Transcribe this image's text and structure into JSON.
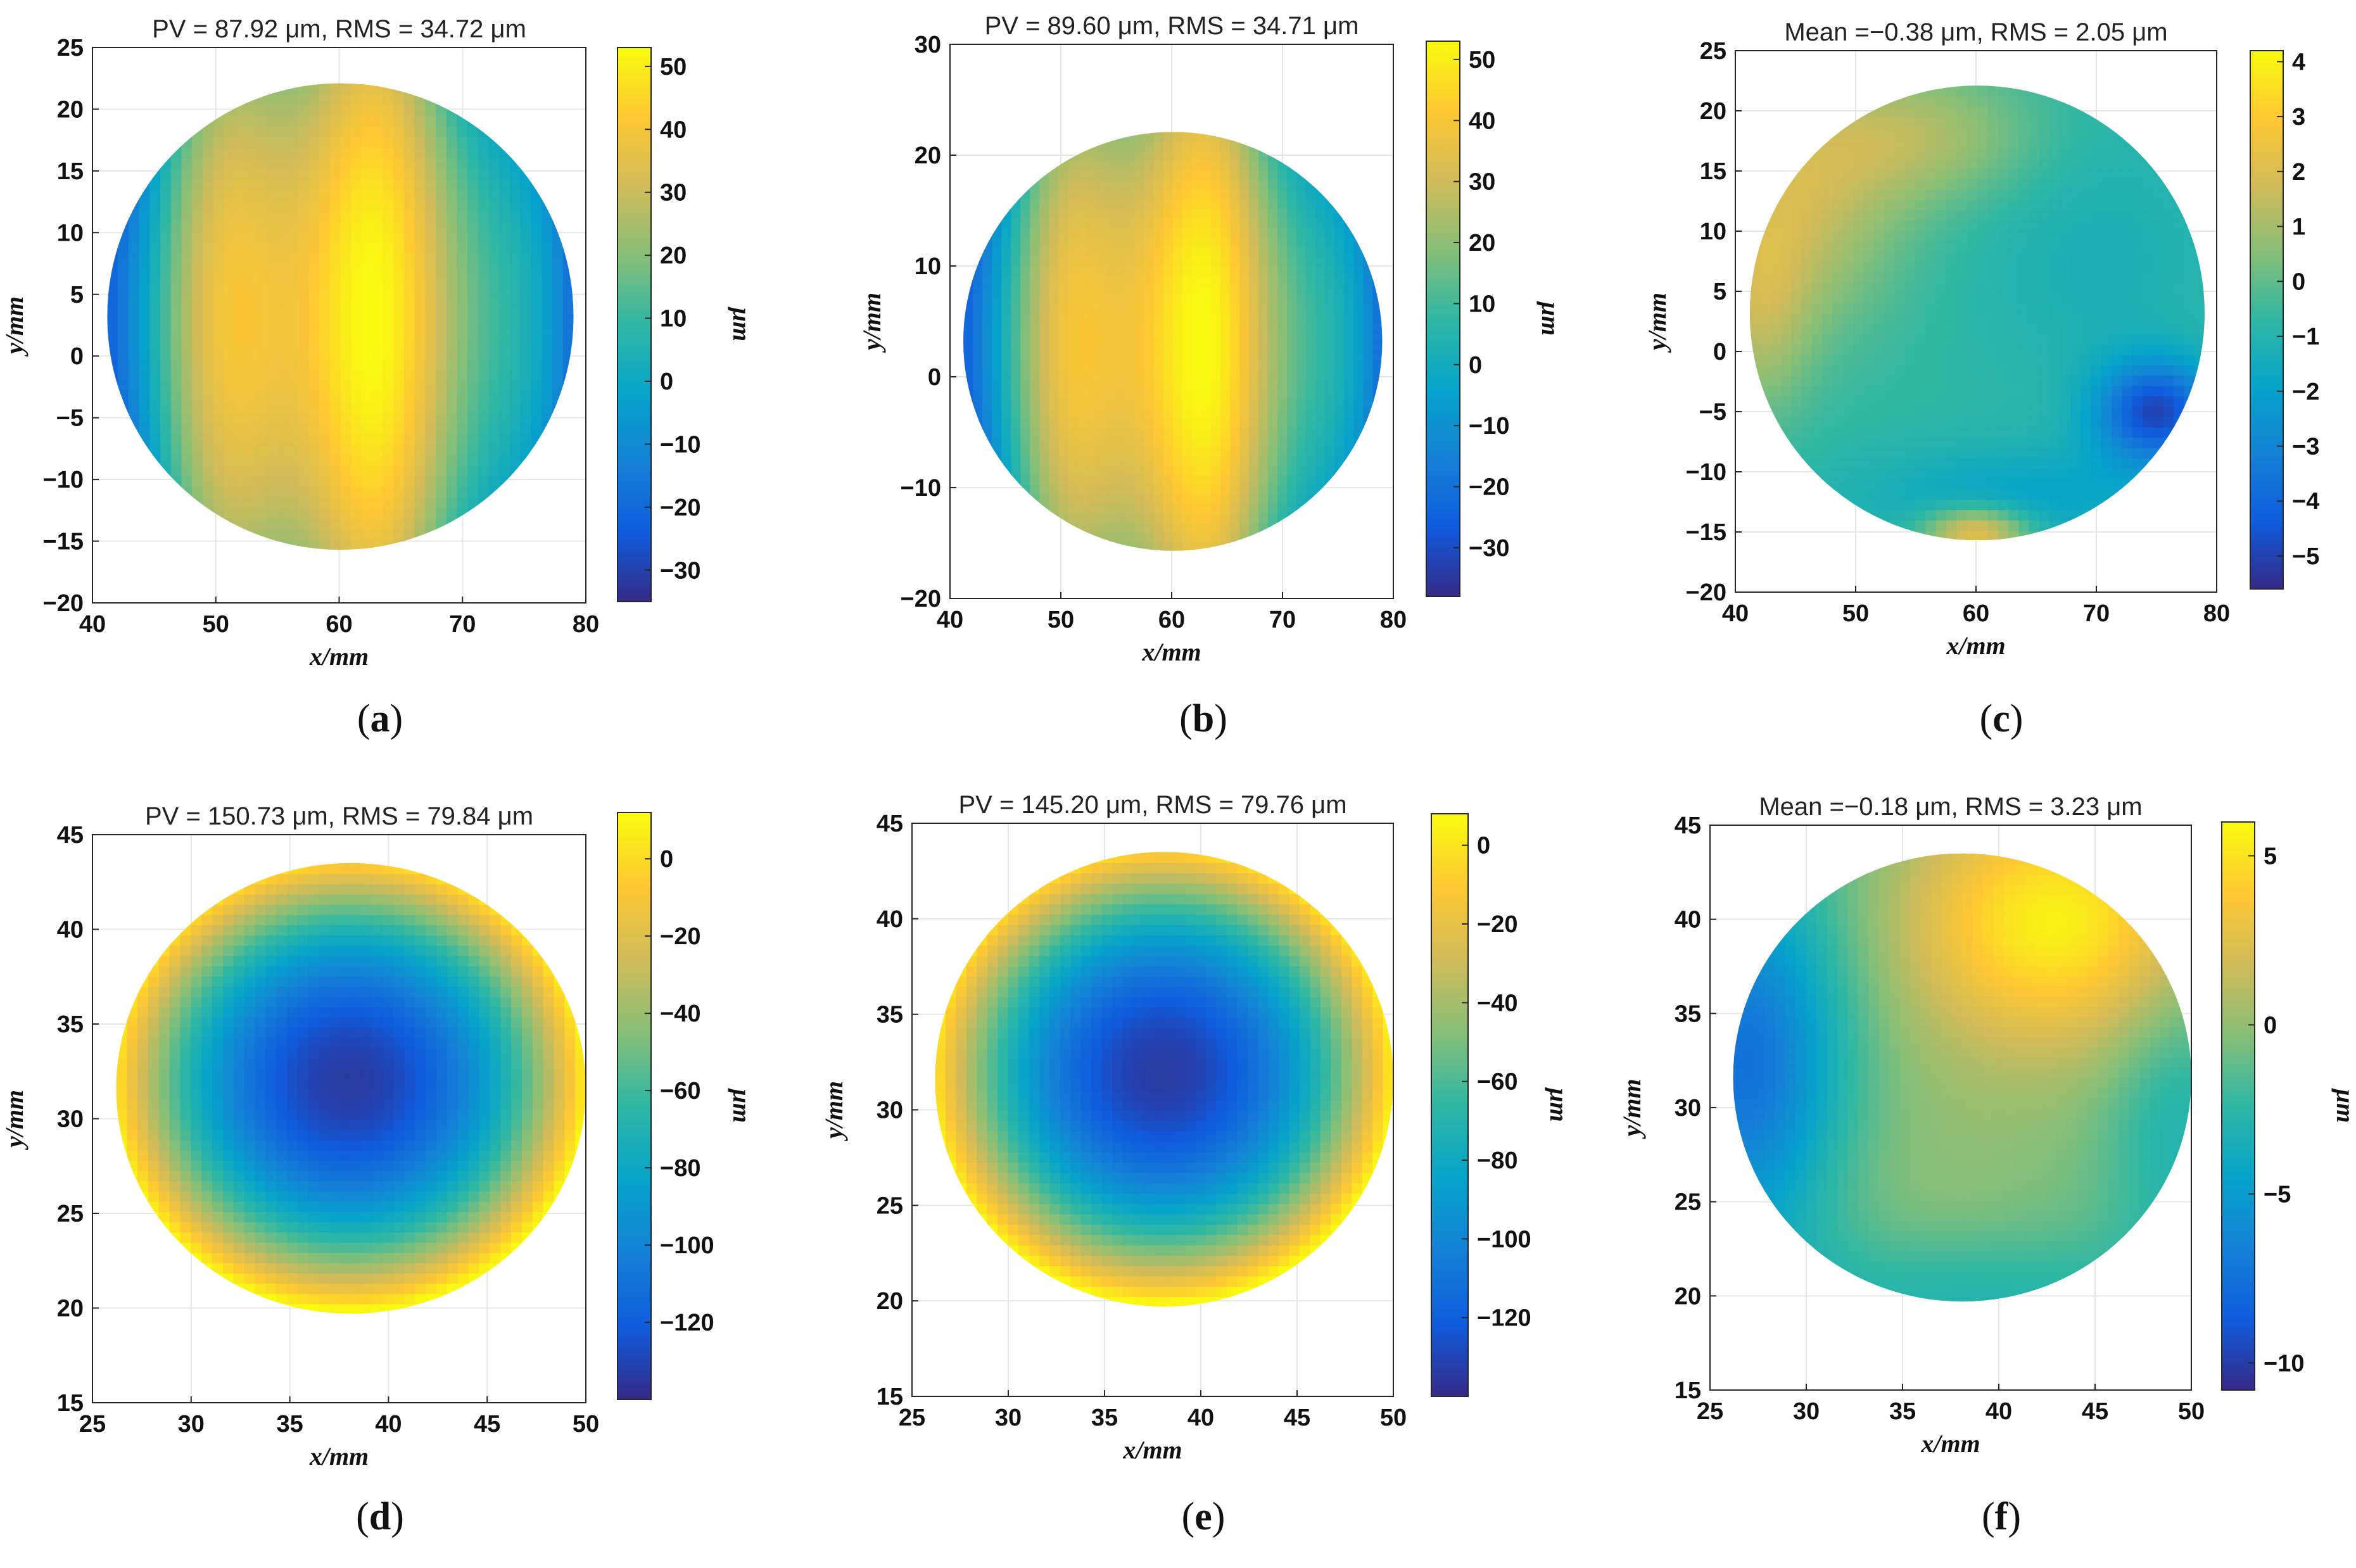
{
  "colors": {
    "parula": [
      "#352a87",
      "#0f5cdd",
      "#1481d6",
      "#06a4ca",
      "#2eb7a4",
      "#87bf77",
      "#d1bb59",
      "#fec832",
      "#f9fb0e"
    ],
    "grid": "#e6e6e6",
    "axis": "#262626"
  },
  "chart_data": [
    {
      "id": "a",
      "type": "heatmap",
      "title": "PV = 87.92 μm, RMS = 34.72 μm",
      "xlabel": "x/mm",
      "ylabel": "y/mm",
      "colorbar_label": "μm",
      "xlim": [
        40,
        80
      ],
      "ylim": [
        -20,
        25
      ],
      "xticks": [
        40,
        50,
        60,
        70,
        80
      ],
      "yticks": [
        -20,
        -15,
        -10,
        -5,
        0,
        5,
        10,
        15,
        20,
        25
      ],
      "clim": [
        -35,
        53
      ],
      "cticks": [
        -30,
        -20,
        -10,
        0,
        10,
        20,
        30,
        40,
        50
      ],
      "aperture": {
        "cx": 60.1,
        "cy": 3.2,
        "r": 18.9
      },
      "surface": "astig",
      "caption": "a"
    },
    {
      "id": "b",
      "type": "heatmap",
      "title": "PV = 89.60 μm, RMS = 34.71 μm",
      "xlabel": "x/mm",
      "ylabel": "y/mm",
      "colorbar_label": "μm",
      "xlim": [
        40,
        80
      ],
      "ylim": [
        -20,
        30
      ],
      "xticks": [
        40,
        50,
        60,
        70,
        80
      ],
      "yticks": [
        -20,
        -10,
        0,
        10,
        20,
        30
      ],
      "clim": [
        -38,
        53
      ],
      "cticks": [
        -30,
        -20,
        -10,
        0,
        10,
        20,
        30,
        40,
        50
      ],
      "aperture": {
        "cx": 60.1,
        "cy": 3.2,
        "r": 18.9
      },
      "surface": "astig",
      "caption": "b"
    },
    {
      "id": "c",
      "type": "heatmap",
      "title": "Mean =−0.38 μm, RMS = 2.05 μm",
      "xlabel": "x/mm",
      "ylabel": "y/mm",
      "colorbar_label": "μm",
      "xlim": [
        40,
        80
      ],
      "ylim": [
        -20,
        25
      ],
      "xticks": [
        40,
        50,
        60,
        70,
        80
      ],
      "yticks": [
        -20,
        -15,
        -10,
        -5,
        0,
        5,
        10,
        15,
        20,
        25
      ],
      "clim": [
        -5.6,
        4.2
      ],
      "cticks": [
        -5,
        -4,
        -3,
        -2,
        -1,
        0,
        1,
        2,
        3,
        4
      ],
      "aperture": {
        "cx": 60.1,
        "cy": 3.2,
        "r": 18.9
      },
      "surface": "residual1",
      "caption": "c"
    },
    {
      "id": "d",
      "type": "heatmap",
      "title": "PV = 150.73 μm, RMS = 79.84 μm",
      "xlabel": "x/mm",
      "ylabel": "y/mm",
      "colorbar_label": "μm",
      "xlim": [
        25,
        50
      ],
      "ylim": [
        15,
        45
      ],
      "xticks": [
        25,
        30,
        35,
        40,
        45,
        50
      ],
      "yticks": [
        15,
        20,
        25,
        30,
        35,
        40,
        45
      ],
      "clim": [
        -140,
        12
      ],
      "cticks": [
        -120,
        -100,
        -80,
        -60,
        -40,
        -20,
        0
      ],
      "aperture": {
        "cx": 38.1,
        "cy": 31.6,
        "r": 11.9
      },
      "surface": "bowl",
      "caption": "d"
    },
    {
      "id": "e",
      "type": "heatmap",
      "title": "PV = 145.20 μm, RMS = 79.76 μm",
      "xlabel": "x/mm",
      "ylabel": "y/mm",
      "colorbar_label": "μm",
      "xlim": [
        25,
        50
      ],
      "ylim": [
        15,
        45
      ],
      "xticks": [
        25,
        30,
        35,
        40,
        45,
        50
      ],
      "yticks": [
        15,
        20,
        25,
        30,
        35,
        40,
        45
      ],
      "clim": [
        -140,
        8
      ],
      "cticks": [
        -120,
        -100,
        -80,
        -60,
        -40,
        -20,
        0
      ],
      "aperture": {
        "cx": 38.1,
        "cy": 31.6,
        "r": 11.9
      },
      "surface": "bowl",
      "caption": "e"
    },
    {
      "id": "f",
      "type": "heatmap",
      "title": "Mean =−0.18 μm, RMS = 3.23 μm",
      "xlabel": "x/mm",
      "ylabel": "y/mm",
      "colorbar_label": "μm",
      "xlim": [
        25,
        50
      ],
      "ylim": [
        15,
        45
      ],
      "xticks": [
        25,
        30,
        35,
        40,
        45,
        50
      ],
      "yticks": [
        15,
        20,
        25,
        30,
        35,
        40,
        45
      ],
      "clim": [
        -10.8,
        6
      ],
      "cticks": [
        -10,
        -5,
        0,
        5
      ],
      "aperture": {
        "cx": 38.1,
        "cy": 31.6,
        "r": 11.9
      },
      "surface": "residual2",
      "caption": "f"
    }
  ]
}
